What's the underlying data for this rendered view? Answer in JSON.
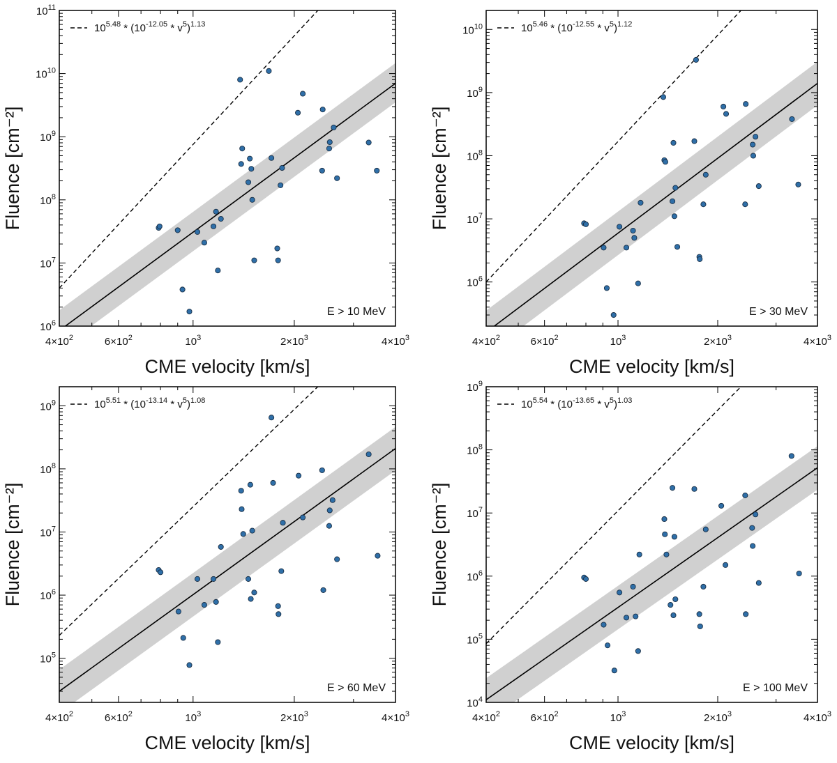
{
  "colors": {
    "point": "#2f6fa8",
    "point_edge": "#1a2f45",
    "band": "#d0d0d0",
    "line": "#000000"
  },
  "chart_data": [
    {
      "type": "scatter",
      "panel": "top-left",
      "xscale": "log",
      "yscale": "log",
      "xlim": [
        400,
        4000
      ],
      "ylim": [
        1000000,
        100000000000
      ],
      "xlabel": "CME velocity [km/s]",
      "ylabel": "Fluence [cm⁻²]",
      "x_ticks": [
        {
          "value": 400,
          "base": "4×10",
          "exp": "2"
        },
        {
          "value": 600,
          "base": "6×10",
          "exp": "2"
        },
        {
          "value": 1000,
          "base": "10",
          "exp": "3"
        },
        {
          "value": 2000,
          "base": "2×10",
          "exp": "3"
        },
        {
          "value": 4000,
          "base": "4×10",
          "exp": "3"
        }
      ],
      "y_ticks": [
        {
          "value": 1000000,
          "base": "10",
          "exp": "6"
        },
        {
          "value": 10000000,
          "base": "10",
          "exp": "7"
        },
        {
          "value": 100000000,
          "base": "10",
          "exp": "8"
        },
        {
          "value": 1000000000,
          "base": "10",
          "exp": "9"
        },
        {
          "value": 10000000000,
          "base": "10",
          "exp": "10"
        },
        {
          "value": 100000000000,
          "base": "10",
          "exp": "11"
        }
      ],
      "energy_label": "E > 10 MeV",
      "legend": {
        "location": "top-left",
        "coef_exp": "5.48",
        "inner_exp": "-12.05",
        "power": "1.13"
      },
      "fit_line": {
        "v1": 400,
        "f1": 850000,
        "v2": 4000,
        "f2": 7000000000
      },
      "band": {
        "lower_factor": 0.5,
        "upper_factor": 2.1
      },
      "dashed_line": {
        "v1": 400,
        "f1": 4000000,
        "v2": 2350,
        "f2": 100000000000
      },
      "points": [
        [
          790,
          36000000
        ],
        [
          795,
          38000000
        ],
        [
          900,
          33000000
        ],
        [
          930,
          3800000
        ],
        [
          975,
          1700000
        ],
        [
          1030,
          31000000
        ],
        [
          1080,
          21000000
        ],
        [
          1150,
          38000000
        ],
        [
          1170,
          65000000
        ],
        [
          1185,
          7600000
        ],
        [
          1210,
          50000000
        ],
        [
          1380,
          8000000000
        ],
        [
          1390,
          370000000
        ],
        [
          1400,
          650000000
        ],
        [
          1460,
          190000000
        ],
        [
          1475,
          450000000
        ],
        [
          1490,
          310000000
        ],
        [
          1500,
          100000000
        ],
        [
          1520,
          11000000
        ],
        [
          1680,
          11000000000
        ],
        [
          1710,
          460000000
        ],
        [
          1780,
          17000000
        ],
        [
          1790,
          11000000
        ],
        [
          1820,
          170000000
        ],
        [
          1840,
          320000000
        ],
        [
          2050,
          2400000000
        ],
        [
          2120,
          4800000000
        ],
        [
          2420,
          290000000
        ],
        [
          2430,
          2700000000
        ],
        [
          2540,
          650000000
        ],
        [
          2550,
          820000000
        ],
        [
          2620,
          1400000000
        ],
        [
          2680,
          220000000
        ],
        [
          3330,
          810000000
        ],
        [
          3520,
          290000000
        ]
      ]
    },
    {
      "type": "scatter",
      "panel": "top-right",
      "xscale": "log",
      "yscale": "log",
      "xlim": [
        400,
        4000
      ],
      "ylim": [
        200000,
        20000000000
      ],
      "xlabel": "CME velocity [km/s]",
      "ylabel": "Fluence [cm⁻²]",
      "x_ticks": [
        {
          "value": 400,
          "base": "4×10",
          "exp": "2"
        },
        {
          "value": 600,
          "base": "6×10",
          "exp": "2"
        },
        {
          "value": 1000,
          "base": "10",
          "exp": "3"
        },
        {
          "value": 2000,
          "base": "2×10",
          "exp": "3"
        },
        {
          "value": 4000,
          "base": "4×10",
          "exp": "3"
        }
      ],
      "y_ticks": [
        {
          "value": 1000000,
          "base": "10",
          "exp": "6"
        },
        {
          "value": 10000000,
          "base": "10",
          "exp": "7"
        },
        {
          "value": 100000000,
          "base": "10",
          "exp": "8"
        },
        {
          "value": 1000000000,
          "base": "10",
          "exp": "9"
        },
        {
          "value": 10000000000,
          "base": "10",
          "exp": "10"
        }
      ],
      "energy_label": "E > 30 MeV",
      "legend": {
        "location": "top-left",
        "coef_exp": "5.46",
        "inner_exp": "-12.55",
        "power": "1.12"
      },
      "fit_line": {
        "v1": 400,
        "f1": 160000,
        "v2": 4000,
        "f2": 1400000000
      },
      "band": {
        "lower_factor": 0.45,
        "upper_factor": 2.2
      },
      "dashed_line": {
        "v1": 400,
        "f1": 1000000,
        "v2": 2350,
        "f2": 20000000000
      },
      "points": [
        [
          790,
          8500000
        ],
        [
          800,
          8200000
        ],
        [
          905,
          3500000
        ],
        [
          925,
          800000
        ],
        [
          970,
          300000
        ],
        [
          1010,
          7500000
        ],
        [
          1060,
          3500000
        ],
        [
          1110,
          6500000
        ],
        [
          1120,
          5000000
        ],
        [
          1150,
          950000
        ],
        [
          1170,
          18000000
        ],
        [
          1370,
          850000000
        ],
        [
          1380,
          85000000
        ],
        [
          1390,
          80000000
        ],
        [
          1460,
          19000000
        ],
        [
          1470,
          160000000
        ],
        [
          1480,
          11000000
        ],
        [
          1490,
          31000000
        ],
        [
          1510,
          3600000
        ],
        [
          1700,
          170000000
        ],
        [
          1720,
          3300000000
        ],
        [
          1760,
          2500000
        ],
        [
          1765,
          2300000
        ],
        [
          1810,
          17000000
        ],
        [
          1840,
          50000000
        ],
        [
          2080,
          600000000
        ],
        [
          2120,
          460000000
        ],
        [
          2420,
          17000000
        ],
        [
          2430,
          660000000
        ],
        [
          2550,
          150000000
        ],
        [
          2560,
          100000000
        ],
        [
          2600,
          200000000
        ],
        [
          2660,
          33000000
        ],
        [
          3350,
          380000000
        ],
        [
          3500,
          35000000
        ]
      ]
    },
    {
      "type": "scatter",
      "panel": "bottom-left",
      "xscale": "log",
      "yscale": "log",
      "xlim": [
        400,
        4000
      ],
      "ylim": [
        20000,
        2000000000
      ],
      "xlabel": "CME velocity [km/s]",
      "ylabel": "Fluence [cm⁻²]",
      "x_ticks": [
        {
          "value": 400,
          "base": "4×10",
          "exp": "2"
        },
        {
          "value": 600,
          "base": "6×10",
          "exp": "2"
        },
        {
          "value": 1000,
          "base": "10",
          "exp": "3"
        },
        {
          "value": 2000,
          "base": "2×10",
          "exp": "3"
        },
        {
          "value": 4000,
          "base": "4×10",
          "exp": "3"
        }
      ],
      "y_ticks": [
        {
          "value": 100000,
          "base": "10",
          "exp": "5"
        },
        {
          "value": 1000000,
          "base": "10",
          "exp": "6"
        },
        {
          "value": 10000000,
          "base": "10",
          "exp": "7"
        },
        {
          "value": 100000000,
          "base": "10",
          "exp": "8"
        },
        {
          "value": 1000000000,
          "base": "10",
          "exp": "9"
        }
      ],
      "energy_label": "E > 60 MeV",
      "legend": {
        "location": "top-left",
        "coef_exp": "5.51",
        "inner_exp": "-13.14",
        "power": "1.08"
      },
      "fit_line": {
        "v1": 400,
        "f1": 30000,
        "v2": 4000,
        "f2": 210000000
      },
      "band": {
        "lower_factor": 0.45,
        "upper_factor": 2.2
      },
      "dashed_line": {
        "v1": 400,
        "f1": 230000,
        "v2": 2350,
        "f2": 2000000000
      },
      "points": [
        [
          790,
          2500000
        ],
        [
          800,
          2300000
        ],
        [
          905,
          550000
        ],
        [
          935,
          210000
        ],
        [
          975,
          78000
        ],
        [
          1030,
          1800000
        ],
        [
          1080,
          700000
        ],
        [
          1150,
          1800000
        ],
        [
          1170,
          780000
        ],
        [
          1185,
          180000
        ],
        [
          1210,
          5800000
        ],
        [
          1390,
          45000000
        ],
        [
          1395,
          23000000
        ],
        [
          1410,
          9300000
        ],
        [
          1460,
          1800000
        ],
        [
          1480,
          56000000
        ],
        [
          1485,
          870000
        ],
        [
          1500,
          10500000
        ],
        [
          1520,
          1100000
        ],
        [
          1710,
          650000000
        ],
        [
          1730,
          60000000
        ],
        [
          1790,
          670000
        ],
        [
          1795,
          500000
        ],
        [
          1830,
          2400000
        ],
        [
          1850,
          14000000
        ],
        [
          2060,
          78000000
        ],
        [
          2120,
          17000000
        ],
        [
          2420,
          95000000
        ],
        [
          2440,
          1200000
        ],
        [
          2540,
          12500000
        ],
        [
          2550,
          22000000
        ],
        [
          2600,
          32000000
        ],
        [
          2680,
          3700000
        ],
        [
          3330,
          170000000
        ],
        [
          3540,
          4200000
        ]
      ]
    },
    {
      "type": "scatter",
      "panel": "bottom-right",
      "xscale": "log",
      "yscale": "log",
      "xlim": [
        400,
        4000
      ],
      "ylim": [
        10000,
        1000000000
      ],
      "xlabel": "CME velocity [km/s]",
      "ylabel": "Fluence [cm⁻²]",
      "x_ticks": [
        {
          "value": 400,
          "base": "4×10",
          "exp": "2"
        },
        {
          "value": 600,
          "base": "6×10",
          "exp": "2"
        },
        {
          "value": 1000,
          "base": "10",
          "exp": "3"
        },
        {
          "value": 2000,
          "base": "2×10",
          "exp": "3"
        },
        {
          "value": 4000,
          "base": "4×10",
          "exp": "3"
        }
      ],
      "y_ticks": [
        {
          "value": 10000,
          "base": "10",
          "exp": "4"
        },
        {
          "value": 100000,
          "base": "10",
          "exp": "5"
        },
        {
          "value": 1000000,
          "base": "10",
          "exp": "6"
        },
        {
          "value": 10000000,
          "base": "10",
          "exp": "7"
        },
        {
          "value": 100000000,
          "base": "10",
          "exp": "8"
        },
        {
          "value": 1000000000,
          "base": "10",
          "exp": "9"
        }
      ],
      "energy_label": "E > 100 MeV",
      "legend": {
        "location": "top-left",
        "coef_exp": "5.54",
        "inner_exp": "-13.65",
        "power": "1.03"
      },
      "fit_line": {
        "v1": 400,
        "f1": 11000,
        "v2": 4000,
        "f2": 52000000
      },
      "band": {
        "lower_factor": 0.45,
        "upper_factor": 2.2
      },
      "dashed_line": {
        "v1": 400,
        "f1": 85000,
        "v2": 2350,
        "f2": 1000000000
      },
      "points": [
        [
          790,
          950000
        ],
        [
          800,
          900000
        ],
        [
          905,
          170000
        ],
        [
          930,
          80000
        ],
        [
          975,
          32000
        ],
        [
          1010,
          550000
        ],
        [
          1060,
          220000
        ],
        [
          1110,
          680000
        ],
        [
          1130,
          230000
        ],
        [
          1150,
          65000
        ],
        [
          1160,
          2200000
        ],
        [
          1380,
          8000000
        ],
        [
          1385,
          4600000
        ],
        [
          1400,
          2200000
        ],
        [
          1440,
          350000
        ],
        [
          1460,
          25000000
        ],
        [
          1470,
          240000
        ],
        [
          1480,
          4200000
        ],
        [
          1490,
          430000
        ],
        [
          1700,
          24000000
        ],
        [
          1760,
          250000
        ],
        [
          1770,
          160000
        ],
        [
          1810,
          680000
        ],
        [
          1840,
          5500000
        ],
        [
          2050,
          13000000
        ],
        [
          2110,
          1500000
        ],
        [
          2420,
          19000000
        ],
        [
          2430,
          250000
        ],
        [
          2540,
          5800000
        ],
        [
          2550,
          3000000
        ],
        [
          2600,
          9500000
        ],
        [
          2660,
          780000
        ],
        [
          3340,
          80000000
        ],
        [
          3520,
          1100000
        ]
      ]
    }
  ]
}
